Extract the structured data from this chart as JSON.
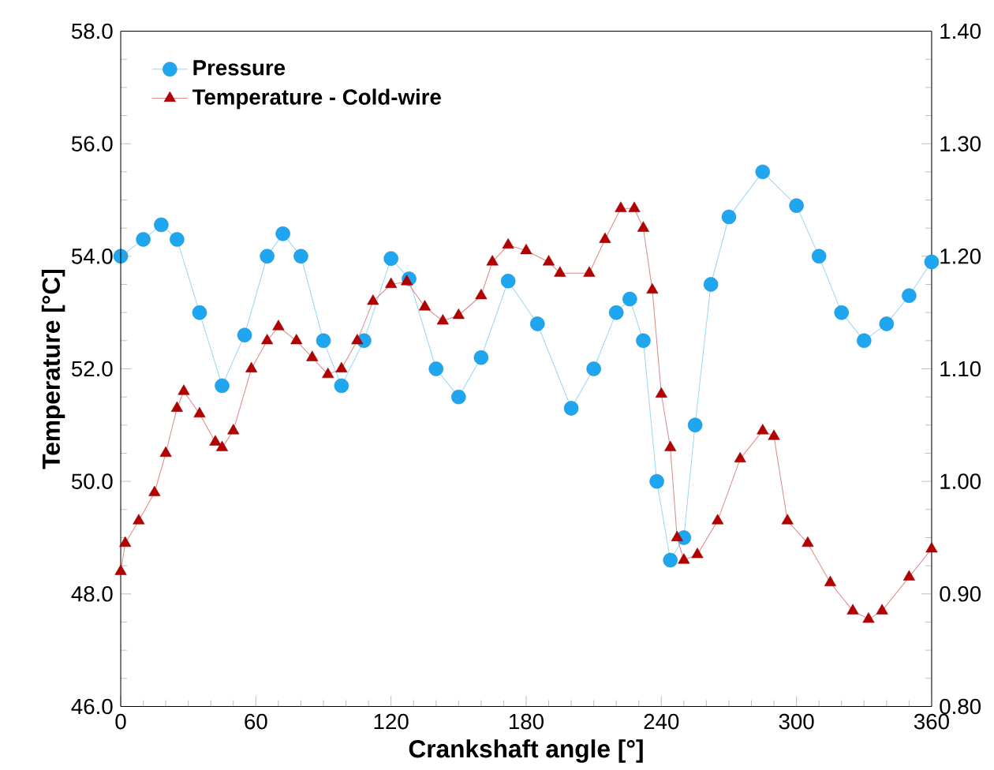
{
  "chart_data": {
    "type": "line",
    "xlabel": "Crankshaft angle [°]",
    "ylabel": "Temperature [°C]",
    "xlim": [
      0,
      360
    ],
    "xticks": [
      0,
      60,
      120,
      180,
      240,
      300,
      360
    ],
    "ylim": [
      46,
      58
    ],
    "yticks": [
      {
        "value": 46,
        "label": "46.0"
      },
      {
        "value": 48,
        "label": "48.0"
      },
      {
        "value": 50,
        "label": "50.0"
      },
      {
        "value": 52,
        "label": "52.0"
      },
      {
        "value": 54,
        "label": "54.0"
      },
      {
        "value": 56,
        "label": "56.0"
      },
      {
        "value": 58,
        "label": "58.0"
      }
    ],
    "y2lim": [
      0.8,
      1.4
    ],
    "y2ticks": [
      {
        "value": 0.8,
        "label": "0.80"
      },
      {
        "value": 0.9,
        "label": "0.90"
      },
      {
        "value": 1.0,
        "label": "1.00"
      },
      {
        "value": 1.1,
        "label": "1.10"
      },
      {
        "value": 1.2,
        "label": "1.20"
      },
      {
        "value": 1.3,
        "label": "1.30"
      },
      {
        "value": 1.4,
        "label": "1.40"
      }
    ],
    "legend": "top left",
    "grid": false,
    "series": [
      {
        "name": "Pressure",
        "color": "#1ea6f0",
        "marker": "circle",
        "axis": "y2",
        "x": [
          0,
          10,
          18,
          25,
          35,
          45,
          55,
          65,
          72,
          80,
          90,
          98,
          108,
          120,
          128,
          140,
          150,
          160,
          172,
          185,
          200,
          210,
          220,
          226,
          232,
          238,
          244,
          250,
          255,
          262,
          270,
          285,
          300,
          310,
          320,
          330,
          340,
          350,
          360
        ],
        "values": [
          1.2,
          1.215,
          1.228,
          1.215,
          1.15,
          1.085,
          1.13,
          1.2,
          1.22,
          1.2,
          1.125,
          1.085,
          1.125,
          1.198,
          1.18,
          1.1,
          1.075,
          1.11,
          1.178,
          1.14,
          1.065,
          1.1,
          1.15,
          1.162,
          1.125,
          1.0,
          0.93,
          0.95,
          1.05,
          1.175,
          1.235,
          1.275,
          1.245,
          1.2,
          1.15,
          1.125,
          1.14,
          1.165,
          1.195
        ]
      },
      {
        "name": "Temperature - Cold-wire",
        "color": "#b30000",
        "marker": "triangle",
        "x": [
          0,
          2,
          8,
          15,
          20,
          25,
          28,
          35,
          42,
          45,
          50,
          58,
          65,
          70,
          78,
          85,
          92,
          98,
          105,
          112,
          120,
          127,
          135,
          143,
          150,
          160,
          165,
          172,
          180,
          190,
          195,
          208,
          215,
          222,
          228,
          232,
          236,
          240,
          244,
          247,
          250,
          256,
          265,
          275,
          285,
          290,
          296,
          305,
          315,
          325,
          332,
          338,
          350,
          360
        ],
        "values": [
          48.4,
          48.9,
          49.3,
          49.8,
          50.5,
          51.3,
          51.6,
          51.2,
          50.7,
          50.6,
          50.9,
          52.0,
          52.5,
          52.75,
          52.5,
          52.2,
          51.9,
          52.0,
          52.5,
          53.2,
          53.5,
          53.55,
          53.1,
          52.85,
          52.95,
          53.3,
          53.9,
          54.2,
          54.1,
          53.9,
          53.7,
          53.7,
          54.3,
          54.85,
          54.85,
          54.5,
          53.4,
          51.55,
          50.6,
          49.0,
          48.6,
          48.7,
          49.3,
          50.4,
          50.9,
          50.8,
          49.3,
          48.9,
          48.2,
          47.7,
          47.55,
          47.7,
          48.3,
          48.8
        ]
      }
    ]
  }
}
